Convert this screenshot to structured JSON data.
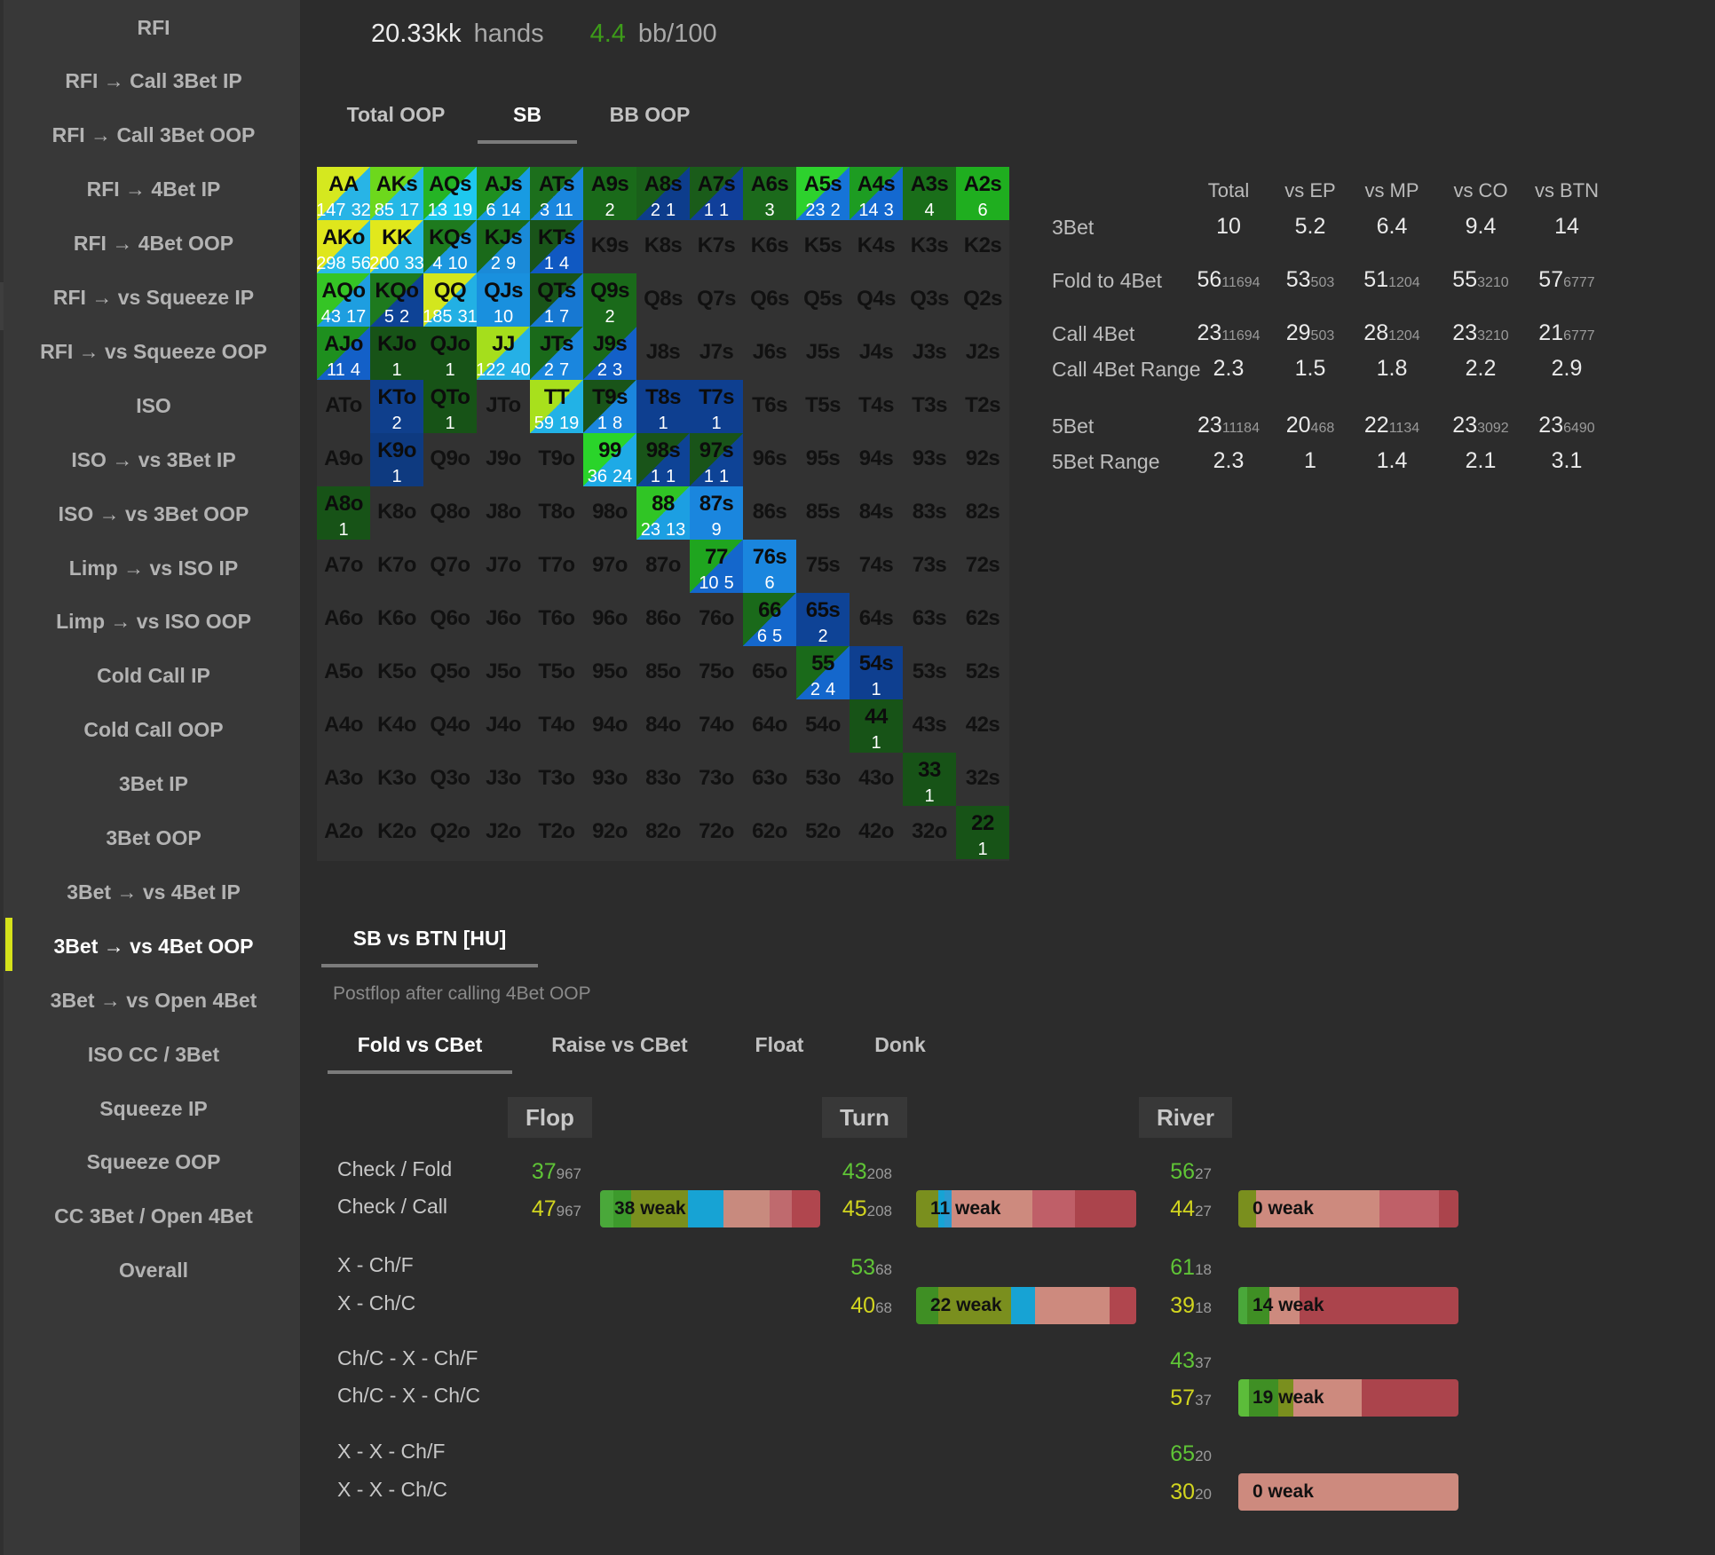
{
  "sidebar": {
    "items": [
      "RFI",
      "RFI → Call 3Bet IP",
      "RFI → Call 3Bet OOP",
      "RFI → 4Bet IP",
      "RFI → 4Bet OOP",
      "RFI → vs Squeeze IP",
      "RFI → vs Squeeze OOP",
      "ISO",
      "ISO → vs 3Bet IP",
      "ISO → vs 3Bet OOP",
      "Limp → vs ISO IP",
      "Limp → vs ISO OOP",
      "Cold Call IP",
      "Cold Call OOP",
      "3Bet IP",
      "3Bet OOP",
      "3Bet → vs 4Bet IP",
      "3Bet → vs 4Bet OOP",
      "3Bet → vs Open 4Bet",
      "ISO CC / 3Bet",
      "Squeeze IP",
      "Squeeze OOP",
      "CC 3Bet / Open 4Bet",
      "Overall"
    ],
    "active": 17
  },
  "header": {
    "hands_value": "20.33kk",
    "hands_label": "hands",
    "bb_value": "4.4",
    "bb_label": "bb/100"
  },
  "position_tabs": [
    "Total OOP",
    "SB",
    "BB OOP"
  ],
  "matrix": {
    "rows": [
      [
        "AA",
        "AKs",
        "AQs",
        "AJs",
        "ATs",
        "A9s",
        "A8s",
        "A7s",
        "A6s",
        "A5s",
        "A4s",
        "A3s",
        "A2s"
      ],
      [
        "AKo",
        "KK",
        "KQs",
        "KJs",
        "KTs",
        "K9s",
        "K8s",
        "K7s",
        "K6s",
        "K5s",
        "K4s",
        "K3s",
        "K2s"
      ],
      [
        "AQo",
        "KQo",
        "QQ",
        "QJs",
        "QTs",
        "Q9s",
        "Q8s",
        "Q7s",
        "Q6s",
        "Q5s",
        "Q4s",
        "Q3s",
        "Q2s"
      ],
      [
        "AJo",
        "KJo",
        "QJo",
        "JJ",
        "JTs",
        "J9s",
        "J8s",
        "J7s",
        "J6s",
        "J5s",
        "J4s",
        "J3s",
        "J2s"
      ],
      [
        "ATo",
        "KTo",
        "QTo",
        "JTo",
        "TT",
        "T9s",
        "T8s",
        "T7s",
        "T6s",
        "T5s",
        "T4s",
        "T3s",
        "T2s"
      ],
      [
        "A9o",
        "K9o",
        "Q9o",
        "J9o",
        "T9o",
        "99",
        "98s",
        "97s",
        "96s",
        "95s",
        "94s",
        "93s",
        "92s"
      ],
      [
        "A8o",
        "K8o",
        "Q8o",
        "J8o",
        "T8o",
        "98o",
        "88",
        "87s",
        "86s",
        "85s",
        "84s",
        "83s",
        "82s"
      ],
      [
        "A7o",
        "K7o",
        "Q7o",
        "J7o",
        "T7o",
        "97o",
        "87o",
        "77",
        "76s",
        "75s",
        "74s",
        "73s",
        "72s"
      ],
      [
        "A6o",
        "K6o",
        "Q6o",
        "J6o",
        "T6o",
        "96o",
        "86o",
        "76o",
        "66",
        "65s",
        "64s",
        "63s",
        "62s"
      ],
      [
        "A5o",
        "K5o",
        "Q5o",
        "J5o",
        "T5o",
        "95o",
        "85o",
        "75o",
        "65o",
        "55",
        "54s",
        "53s",
        "52s"
      ],
      [
        "A4o",
        "K4o",
        "Q4o",
        "J4o",
        "T4o",
        "94o",
        "84o",
        "74o",
        "64o",
        "54o",
        "44",
        "43s",
        "42s"
      ],
      [
        "A3o",
        "K3o",
        "Q3o",
        "J3o",
        "T3o",
        "93o",
        "83o",
        "73o",
        "63o",
        "53o",
        "43o",
        "33",
        "32s"
      ],
      [
        "A2o",
        "K2o",
        "Q2o",
        "J2o",
        "T2o",
        "92o",
        "82o",
        "72o",
        "62o",
        "52o",
        "42o",
        "32o",
        "22"
      ]
    ],
    "cells": {
      "AA": {
        "n": [
          "147",
          "32"
        ],
        "c": [
          "#d5e81f",
          "#28b4e6"
        ]
      },
      "AKs": {
        "n": [
          "85",
          "17"
        ],
        "c": [
          "#6dd81c",
          "#24b8e6"
        ]
      },
      "AQs": {
        "n": [
          "13",
          "19"
        ],
        "c": [
          "#25b425",
          "#1ec8ee"
        ]
      },
      "AJs": {
        "n": [
          "6",
          "14"
        ],
        "c": [
          "#1f8f1f",
          "#189be2"
        ]
      },
      "ATs": {
        "n": [
          "3",
          "11"
        ],
        "c": [
          "#1c6f1c",
          "#1a86de"
        ]
      },
      "A9s": {
        "n": [
          "2"
        ],
        "c": [
          "#1a6a1a"
        ]
      },
      "A8s": {
        "n": [
          "2",
          "1"
        ],
        "c": [
          "#1a5f1a",
          "#0d3d8c"
        ]
      },
      "A7s": {
        "n": [
          "1",
          "1"
        ],
        "c": [
          "#1a5c1a",
          "#103f9a"
        ]
      },
      "A6s": {
        "n": [
          "3"
        ],
        "c": [
          "#1c6a1c"
        ]
      },
      "A5s": {
        "n": [
          "23",
          "2"
        ],
        "c": [
          "#2dd12d",
          "#1674d8"
        ]
      },
      "A4s": {
        "n": [
          "14",
          "3"
        ],
        "c": [
          "#1d9c22",
          "#1469d0"
        ]
      },
      "A3s": {
        "n": [
          "4"
        ],
        "c": [
          "#1a6e1a"
        ]
      },
      "A2s": {
        "n": [
          "6"
        ],
        "c": [
          "#1fae1f"
        ]
      },
      "AKo": {
        "n": [
          "298",
          "56"
        ],
        "c": [
          "#dfe61c",
          "#28bbe8"
        ]
      },
      "KK": {
        "n": [
          "200",
          "33"
        ],
        "c": [
          "#e1e81c",
          "#27b6e6"
        ]
      },
      "KQs": {
        "n": [
          "4",
          "10"
        ],
        "c": [
          "#1e7a1e",
          "#1d98e0"
        ]
      },
      "KJs": {
        "n": [
          "2",
          "9"
        ],
        "c": [
          "#1a6a1a",
          "#1a8ad8"
        ]
      },
      "KTs": {
        "n": [
          "1",
          "4"
        ],
        "c": [
          "#195419",
          "#1059c2"
        ]
      },
      "AQo": {
        "n": [
          "43",
          "17"
        ],
        "c": [
          "#35c525",
          "#1e9ee0"
        ]
      },
      "KQo": {
        "n": [
          "5",
          "2"
        ],
        "c": [
          "#1e7a1e",
          "#0e4396"
        ]
      },
      "QQ": {
        "n": [
          "185",
          "31"
        ],
        "c": [
          "#d3e61e",
          "#22b0e4"
        ]
      },
      "QJs": {
        "n": [
          "10"
        ],
        "c": [
          "#1990de"
        ]
      },
      "QTs": {
        "n": [
          "1",
          "7"
        ],
        "c": [
          "#195419",
          "#1778d2"
        ]
      },
      "Q9s": {
        "n": [
          "2"
        ],
        "c": [
          "#1a6a1a"
        ]
      },
      "AJo": {
        "n": [
          "11",
          "4"
        ],
        "c": [
          "#1e8f1e",
          "#1360c8"
        ]
      },
      "KJo": {
        "n": [
          "1"
        ],
        "c": [
          "#175317"
        ]
      },
      "QJo": {
        "n": [
          "1"
        ],
        "c": [
          "#175317"
        ]
      },
      "JJ": {
        "n": [
          "122",
          "40"
        ],
        "c": [
          "#a5de1c",
          "#25b0e6"
        ]
      },
      "JTs": {
        "n": [
          "2",
          "7"
        ],
        "c": [
          "#1a6a1a",
          "#1a86de"
        ]
      },
      "J9s": {
        "n": [
          "2",
          "3"
        ],
        "c": [
          "#1a6a1a",
          "#1360c8"
        ]
      },
      "KTo": {
        "n": [
          "2"
        ],
        "c": [
          "#0f3f8c"
        ]
      },
      "QTo": {
        "n": [
          "1"
        ],
        "c": [
          "#175317"
        ]
      },
      "TT": {
        "n": [
          "59",
          "19"
        ],
        "c": [
          "#a8e01c",
          "#22b2e6"
        ]
      },
      "T9s": {
        "n": [
          "1",
          "8"
        ],
        "c": [
          "#195419",
          "#1a86de"
        ]
      },
      "T8s": {
        "n": [
          "1"
        ],
        "c": [
          "#0e3f90"
        ]
      },
      "T7s": {
        "n": [
          "1"
        ],
        "c": [
          "#0e3f90"
        ]
      },
      "K9o": {
        "n": [
          "1"
        ],
        "c": [
          "#0e3a80"
        ]
      },
      "99": {
        "n": [
          "36",
          "24"
        ],
        "c": [
          "#2ad42a",
          "#1eaae6"
        ]
      },
      "98s": {
        "n": [
          "1",
          "1"
        ],
        "c": [
          "#195419",
          "#0e4396"
        ]
      },
      "97s": {
        "n": [
          "1",
          "1"
        ],
        "c": [
          "#195419",
          "#0e4396"
        ]
      },
      "A8o": {
        "n": [
          "1"
        ],
        "c": [
          "#175317"
        ]
      },
      "88": {
        "n": [
          "23",
          "13"
        ],
        "c": [
          "#30c525",
          "#1c9fe2"
        ]
      },
      "87s": {
        "n": [
          "9"
        ],
        "c": [
          "#1a86de"
        ]
      },
      "77": {
        "n": [
          "10",
          "5"
        ],
        "c": [
          "#1fa51f",
          "#1467cc"
        ]
      },
      "76s": {
        "n": [
          "6"
        ],
        "c": [
          "#1a86de"
        ]
      },
      "66": {
        "n": [
          "6",
          "5"
        ],
        "c": [
          "#1a6a1a",
          "#1467cc"
        ]
      },
      "65s": {
        "n": [
          "2"
        ],
        "c": [
          "#0e4396"
        ]
      },
      "55": {
        "n": [
          "2",
          "4"
        ],
        "c": [
          "#1a6a1a",
          "#1467cc"
        ]
      },
      "54s": {
        "n": [
          "1"
        ],
        "c": [
          "#0e3f90"
        ]
      },
      "44": {
        "n": [
          "1"
        ],
        "c": [
          "#175317"
        ]
      },
      "33": {
        "n": [
          "1"
        ],
        "c": [
          "#175317"
        ]
      },
      "22": {
        "n": [
          "1"
        ],
        "c": [
          "#175317"
        ]
      }
    }
  },
  "stats": {
    "columns": [
      "Total",
      "vs EP",
      "vs MP",
      "vs CO",
      "vs BTN"
    ],
    "rows": [
      {
        "label": "3Bet",
        "cells": [
          [
            "10",
            ""
          ],
          [
            "5.2",
            ""
          ],
          [
            "6.4",
            ""
          ],
          [
            "9.4",
            ""
          ],
          [
            "14",
            ""
          ]
        ]
      },
      {
        "label": "Fold to 4Bet",
        "cells": [
          [
            "56",
            "11694"
          ],
          [
            "53",
            "503"
          ],
          [
            "51",
            "1204"
          ],
          [
            "55",
            "3210"
          ],
          [
            "57",
            "6777"
          ]
        ]
      },
      {
        "label": "Call 4Bet",
        "cells": [
          [
            "23",
            "11694"
          ],
          [
            "29",
            "503"
          ],
          [
            "28",
            "1204"
          ],
          [
            "23",
            "3210"
          ],
          [
            "21",
            "6777"
          ]
        ]
      },
      {
        "label": "Call 4Bet Range",
        "cells": [
          [
            "2.3",
            ""
          ],
          [
            "1.5",
            ""
          ],
          [
            "1.8",
            ""
          ],
          [
            "2.2",
            ""
          ],
          [
            "2.9",
            ""
          ]
        ]
      },
      {
        "label": "5Bet",
        "cells": [
          [
            "23",
            "11184"
          ],
          [
            "20",
            "468"
          ],
          [
            "22",
            "1134"
          ],
          [
            "23",
            "3092"
          ],
          [
            "23",
            "6490"
          ]
        ]
      },
      {
        "label": "5Bet Range",
        "cells": [
          [
            "2.3",
            ""
          ],
          [
            "1",
            ""
          ],
          [
            "1.4",
            ""
          ],
          [
            "2.1",
            ""
          ],
          [
            "3.1",
            ""
          ]
        ]
      }
    ]
  },
  "matchup_tab": "SB vs BTN [HU]",
  "postflop": {
    "subtitle": "Postflop after calling 4Bet OOP",
    "tabs": [
      "Fold vs CBet",
      "Raise vs CBet",
      "Float",
      "Donk"
    ],
    "streets": [
      "Flop",
      "Turn",
      "River"
    ],
    "labels": [
      "Check / Fold",
      "Check / Call",
      "X - Ch/F",
      "X - Ch/C",
      "Ch/C - X - Ch/F",
      "Ch/C - X - Ch/C",
      "X - X - Ch/F",
      "X - X - Ch/C"
    ],
    "values": [
      {
        "v": "37",
        "s": "967",
        "cls": "g",
        "street": 0,
        "row": 0
      },
      {
        "v": "47",
        "s": "967",
        "cls": "y",
        "street": 0,
        "row": 1
      },
      {
        "v": "43",
        "s": "208",
        "cls": "g",
        "street": 1,
        "row": 0
      },
      {
        "v": "45",
        "s": "208",
        "cls": "y",
        "street": 1,
        "row": 1
      },
      {
        "v": "56",
        "s": "27",
        "cls": "g",
        "street": 2,
        "row": 0
      },
      {
        "v": "44",
        "s": "27",
        "cls": "y",
        "street": 2,
        "row": 1
      },
      {
        "v": "53",
        "s": "68",
        "cls": "g",
        "street": 1,
        "row": 2
      },
      {
        "v": "40",
        "s": "68",
        "cls": "y",
        "street": 1,
        "row": 3
      },
      {
        "v": "61",
        "s": "18",
        "cls": "g",
        "street": 2,
        "row": 2
      },
      {
        "v": "39",
        "s": "18",
        "cls": "y",
        "street": 2,
        "row": 3
      },
      {
        "v": "43",
        "s": "37",
        "cls": "g",
        "street": 2,
        "row": 4
      },
      {
        "v": "57",
        "s": "37",
        "cls": "y",
        "street": 2,
        "row": 5
      },
      {
        "v": "65",
        "s": "20",
        "cls": "g",
        "street": 2,
        "row": 6
      },
      {
        "v": "30",
        "s": "20",
        "cls": "y",
        "street": 2,
        "row": 7
      }
    ],
    "bars": [
      {
        "label": "38 weak",
        "street": 0,
        "row": 1,
        "segs": [
          [
            0.06,
            "#4aa83a"
          ],
          [
            0.08,
            "#3d9a2c"
          ],
          [
            0.26,
            "#7a8f1e"
          ],
          [
            0.16,
            "#17a3d4"
          ],
          [
            0.21,
            "#c88a7e"
          ],
          [
            0.1,
            "#bf6a6e"
          ],
          [
            0.13,
            "#b0464e"
          ]
        ]
      },
      {
        "label": "11 weak",
        "street": 1,
        "row": 1,
        "segs": [
          [
            0.1,
            "#7a8f1e"
          ],
          [
            0.03,
            "#17a3d4"
          ],
          [
            0.03,
            "#2a9ad0"
          ],
          [
            0.37,
            "#cd8a7e"
          ],
          [
            0.19,
            "#bf5f68"
          ],
          [
            0.28,
            "#ab444c"
          ]
        ]
      },
      {
        "label": "0 weak",
        "street": 2,
        "row": 1,
        "segs": [
          [
            0.08,
            "#7a8f1e"
          ],
          [
            0.56,
            "#cd8a7e"
          ],
          [
            0.27,
            "#bf6068"
          ],
          [
            0.09,
            "#ab444c"
          ]
        ]
      },
      {
        "label": "22 weak",
        "street": 1,
        "row": 3,
        "segs": [
          [
            0.1,
            "#3f8f24"
          ],
          [
            0.33,
            "#7a8f1e"
          ],
          [
            0.11,
            "#17a3d4"
          ],
          [
            0.34,
            "#cd8a7e"
          ],
          [
            0.12,
            "#b0464e"
          ]
        ]
      },
      {
        "label": "14 weak",
        "street": 2,
        "row": 3,
        "segs": [
          [
            0.04,
            "#4aa83a"
          ],
          [
            0.1,
            "#3f8f24"
          ],
          [
            0.14,
            "#cd8a7e"
          ],
          [
            0.72,
            "#ab444c"
          ]
        ]
      },
      {
        "label": "19 weak",
        "street": 2,
        "row": 5,
        "segs": [
          [
            0.05,
            "#5cbc3a"
          ],
          [
            0.13,
            "#3f8f24"
          ],
          [
            0.07,
            "#7a8f1e"
          ],
          [
            0.31,
            "#cd8a7e"
          ],
          [
            0.44,
            "#ab444c"
          ]
        ]
      },
      {
        "label": "0 weak",
        "street": 2,
        "row": 7,
        "segs": [
          [
            1.0,
            "#cd8a7e"
          ]
        ]
      }
    ]
  }
}
